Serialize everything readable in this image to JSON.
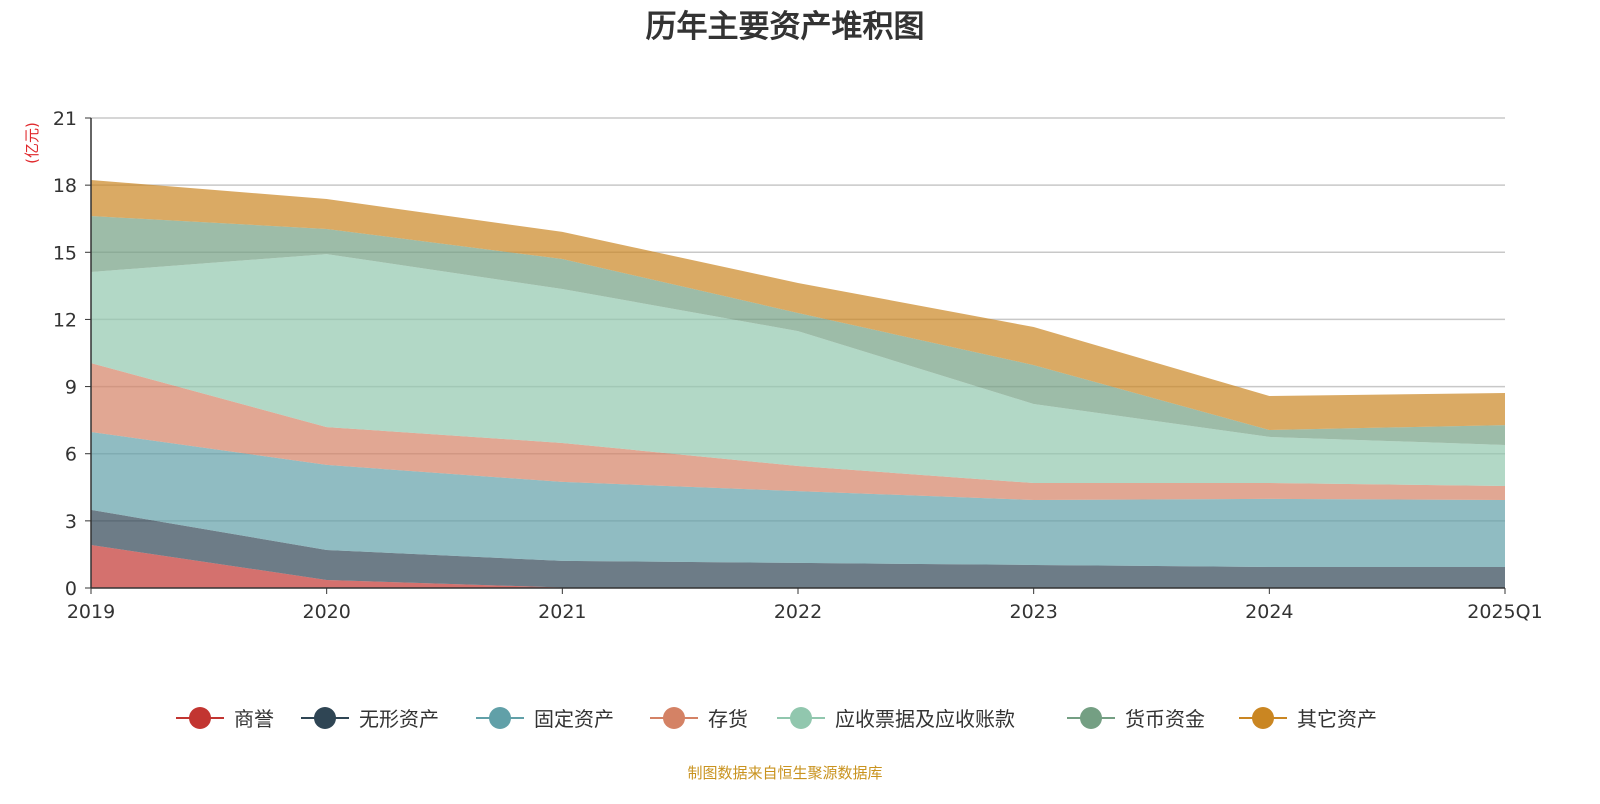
{
  "chart_data": {
    "type": "area",
    "stacked": true,
    "title": "历年主要资产堆积图",
    "ylabel": "(亿元)",
    "xlabel": "",
    "categories": [
      "2019",
      "2020",
      "2021",
      "2022",
      "2023",
      "2024",
      "2025Q1"
    ],
    "ylim": [
      0,
      21
    ],
    "yticks": [
      0,
      3,
      6,
      9,
      12,
      15,
      18,
      21
    ],
    "grid": true,
    "legend_position": "bottom",
    "series": [
      {
        "name": "商誉",
        "color": "#c23531",
        "values": [
          1.92,
          0.36,
          0.02,
          0,
          0,
          0,
          0
        ]
      },
      {
        "name": "无形资产",
        "color": "#2f4554",
        "values": [
          1.57,
          1.34,
          1.19,
          1.12,
          1.03,
          0.94,
          0.94
        ]
      },
      {
        "name": "固定资产",
        "color": "#61a0a8",
        "values": [
          3.48,
          3.8,
          3.53,
          3.21,
          2.9,
          3.04,
          2.99
        ]
      },
      {
        "name": "存货",
        "color": "#d48265",
        "values": [
          3.08,
          1.69,
          1.74,
          1.12,
          0.76,
          0.71,
          0.63
        ]
      },
      {
        "name": "应收票据及应收账款",
        "color": "#91c7ae",
        "values": [
          4.07,
          7.73,
          6.88,
          6.03,
          3.53,
          2.06,
          1.83
        ]
      },
      {
        "name": "货币资金",
        "color": "#749f83",
        "values": [
          2.5,
          1.12,
          1.34,
          0.81,
          1.74,
          0.31,
          0.89
        ]
      },
      {
        "name": "其它资产",
        "color": "#ca8622",
        "values": [
          1.61,
          1.34,
          1.21,
          1.34,
          1.7,
          1.52,
          1.43
        ]
      }
    ]
  },
  "source_note": "制图数据来自恒生聚源数据库"
}
